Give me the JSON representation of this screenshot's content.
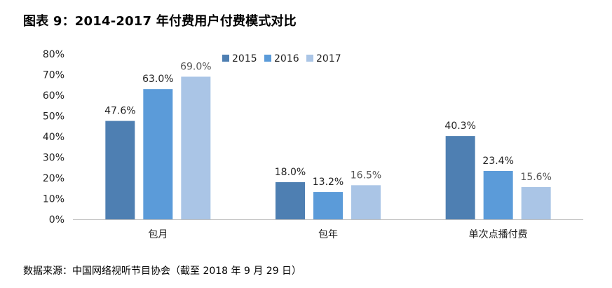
{
  "figure": {
    "title": "图表 9：2014-2017 年付费用户付费模式对比",
    "source": "数据来源：中国网络视听节目协会（截至 2018 年 9 月 29 日）"
  },
  "chart_data": {
    "type": "bar",
    "categories": [
      "包月",
      "包年",
      "单次点播付费"
    ],
    "series": [
      {
        "name": "2015",
        "values": [
          47.6,
          18.0,
          40.3
        ],
        "labels": [
          "47.6%",
          "18.0%",
          "40.3%"
        ],
        "color": "#4e7fb2"
      },
      {
        "name": "2016",
        "values": [
          63.0,
          13.2,
          23.4
        ],
        "labels": [
          "63.0%",
          "13.2%",
          "23.4%"
        ],
        "color": "#5b9bd9"
      },
      {
        "name": "2017",
        "values": [
          69.0,
          16.5,
          15.6
        ],
        "labels": [
          "69.0%",
          "16.5%",
          "15.6%"
        ],
        "color": "#aac5e6"
      }
    ],
    "yticks": [
      "0%",
      "10%",
      "20%",
      "30%",
      "40%",
      "50%",
      "60%",
      "70%",
      "80%"
    ],
    "ylim": [
      0,
      80
    ],
    "grid": false,
    "legend": "top"
  }
}
